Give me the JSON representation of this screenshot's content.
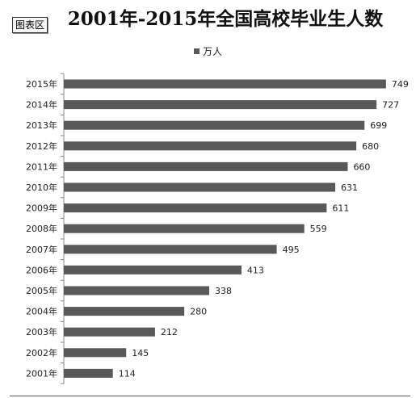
{
  "area_tag": "图表区",
  "chart_data": {
    "type": "bar",
    "orientation": "horizontal",
    "title": "2001年-2015年全国高校毕业生人数",
    "categories": [
      "2015年",
      "2014年",
      "2013年",
      "2012年",
      "2011年",
      "2010年",
      "2009年",
      "2008年",
      "2007年",
      "2006年",
      "2005年",
      "2004年",
      "2003年",
      "2002年",
      "2001年"
    ],
    "series": [
      {
        "name": "万人",
        "values": [
          749,
          727,
          699,
          680,
          660,
          631,
          611,
          559,
          495,
          413,
          338,
          280,
          212,
          145,
          114
        ]
      }
    ],
    "xlim": [
      0,
      800
    ],
    "legend_position": "top",
    "grid": false,
    "colors": {
      "bar": "#595959",
      "axis": "#888888",
      "text": "#222222"
    }
  }
}
